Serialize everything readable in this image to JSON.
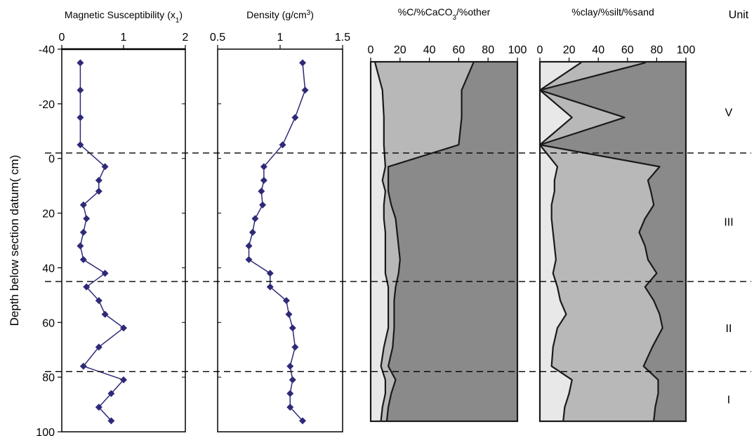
{
  "chart_data": {
    "type": "line",
    "y_axis": {
      "label": "Depth below section datum( cm)",
      "ticks": [
        -40,
        -20,
        0,
        20,
        40,
        60,
        80,
        100
      ],
      "range": [
        -40,
        100
      ],
      "reversed": true
    },
    "unit_header": "Unit",
    "units": [
      {
        "name": "V",
        "depth": -17
      },
      {
        "name": "III",
        "depth": 23
      },
      {
        "name": "II",
        "depth": 62
      },
      {
        "name": "I",
        "depth": 88
      }
    ],
    "unit_boundaries": [
      -2,
      45,
      78
    ],
    "panels": [
      {
        "title": "Magnetic Susceptibility (x",
        "title_sub": "1",
        "title_close": ")",
        "type": "line",
        "x_ticks": [
          "0",
          "1",
          "2"
        ],
        "xlim": [
          0,
          2
        ],
        "series": [
          {
            "color": "#2e2a78",
            "marker": "diamond",
            "points": [
              [
                0.3,
                -35
              ],
              [
                0.3,
                -25
              ],
              [
                0.3,
                -15
              ],
              [
                0.3,
                -5
              ],
              [
                0.7,
                3
              ],
              [
                0.6,
                8
              ],
              [
                0.6,
                12
              ],
              [
                0.35,
                17
              ],
              [
                0.4,
                22
              ],
              [
                0.35,
                27
              ],
              [
                0.3,
                32
              ],
              [
                0.35,
                37
              ],
              [
                0.7,
                42
              ],
              [
                0.4,
                47
              ],
              [
                0.6,
                52
              ],
              [
                0.7,
                57
              ],
              [
                1.0,
                62
              ],
              [
                0.6,
                69
              ],
              [
                0.35,
                76
              ],
              [
                1.0,
                81
              ],
              [
                0.8,
                86
              ],
              [
                0.6,
                91
              ],
              [
                0.8,
                96
              ]
            ]
          }
        ]
      },
      {
        "title": "Density (g/cm",
        "title_sup": "3",
        "title_close": ")",
        "type": "line",
        "x_ticks": [
          "0.5",
          "1",
          "1.5"
        ],
        "xlim": [
          0.5,
          1.5
        ],
        "series": [
          {
            "color": "#2e2a78",
            "marker": "diamond",
            "points": [
              [
                1.18,
                -35
              ],
              [
                1.2,
                -25
              ],
              [
                1.12,
                -15
              ],
              [
                1.02,
                -5
              ],
              [
                0.87,
                3
              ],
              [
                0.87,
                8
              ],
              [
                0.85,
                12
              ],
              [
                0.86,
                17
              ],
              [
                0.8,
                22
              ],
              [
                0.78,
                27
              ],
              [
                0.75,
                32
              ],
              [
                0.75,
                37
              ],
              [
                0.92,
                42
              ],
              [
                0.92,
                47
              ],
              [
                1.05,
                52
              ],
              [
                1.07,
                57
              ],
              [
                1.1,
                62
              ],
              [
                1.12,
                69
              ],
              [
                1.08,
                76
              ],
              [
                1.1,
                81
              ],
              [
                1.08,
                86
              ],
              [
                1.08,
                91
              ],
              [
                1.18,
                96
              ]
            ]
          }
        ]
      },
      {
        "title": "%C/%CaCO",
        "title_sub": "3",
        "title_close": "/%other",
        "type": "area",
        "x_ticks": [
          "0",
          "20",
          "40",
          "60",
          "80",
          "100"
        ],
        "xlim": [
          0,
          100
        ],
        "depths": [
          -35,
          -25,
          -15,
          -5,
          3,
          8,
          12,
          17,
          22,
          27,
          32,
          37,
          42,
          47,
          52,
          57,
          62,
          69,
          76,
          81,
          86,
          91,
          96
        ],
        "series": [
          {
            "color": "#e8e8e8",
            "values": [
              3,
              8,
              9,
              9,
              10,
              8,
              10,
              9,
              9,
              10,
              10,
              10,
              10,
              12,
              12,
              12,
              12,
              9,
              7,
              10,
              10,
              8,
              7
            ]
          },
          {
            "color": "#b8b8b8",
            "values": [
              70,
              62,
              62,
              60,
              12,
              12,
              12,
              14,
              17,
              18,
              19,
              20,
              19,
              17,
              16,
              16,
              16,
              15,
              12,
              17,
              14,
              12,
              11
            ]
          },
          {
            "color": "#8a8a8a",
            "values": [
              100,
              100,
              100,
              100,
              100,
              100,
              100,
              100,
              100,
              100,
              100,
              100,
              100,
              100,
              100,
              100,
              100,
              100,
              100,
              100,
              100,
              100,
              100
            ]
          }
        ]
      },
      {
        "title": "%clay/%silt/%sand",
        "type": "area",
        "x_ticks": [
          "0",
          "20",
          "40",
          "60",
          "80",
          "100"
        ],
        "xlim": [
          0,
          100
        ],
        "depths": [
          -35,
          -25,
          -15,
          -5,
          3,
          8,
          12,
          17,
          22,
          27,
          32,
          37,
          42,
          47,
          52,
          57,
          62,
          69,
          76,
          81,
          86,
          91,
          96
        ],
        "series": [
          {
            "color": "#e8e8e8",
            "values": [
              28,
              0,
              22,
              0,
              12,
              10,
              10,
              8,
              8,
              9,
              10,
              11,
              9,
              12,
              14,
              18,
              12,
              9,
              8,
              22,
              20,
              17,
              16
            ]
          },
          {
            "color": "#b8b8b8",
            "values": [
              72,
              0,
              58,
              0,
              82,
              74,
              76,
              78,
              72,
              68,
              72,
              74,
              80,
              72,
              78,
              82,
              84,
              77,
              71,
              81,
              81,
              79,
              78
            ]
          },
          {
            "color": "#8a8a8a",
            "values": [
              100,
              100,
              100,
              100,
              100,
              100,
              100,
              100,
              100,
              100,
              100,
              100,
              100,
              100,
              100,
              100,
              100,
              100,
              100,
              100,
              100,
              100,
              100
            ]
          }
        ]
      }
    ]
  }
}
